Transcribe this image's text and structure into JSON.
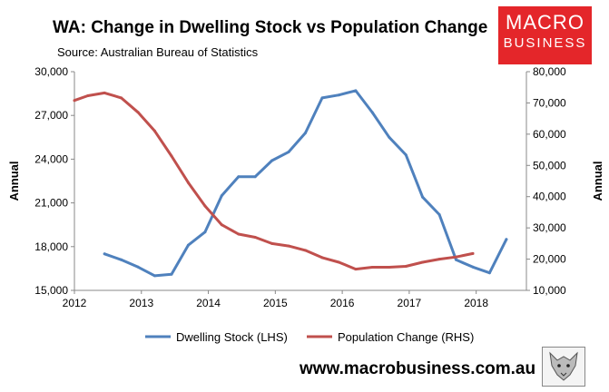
{
  "header": {
    "title": "WA: Change in Dwelling Stock vs Population Change",
    "source": "Source: Australian Bureau of Statistics"
  },
  "logo": {
    "line1": "MACRO",
    "line2": "BUSINESS"
  },
  "footer": {
    "website": "www.macrobusiness.com.au"
  },
  "chart_data": {
    "type": "line",
    "title": "WA: Change in Dwelling Stock vs Population Change",
    "subtitle": "Source: Australian Bureau of Statistics",
    "xlabel": "",
    "ylabel": "Annual",
    "y2label": "Annual",
    "xlim": [
      2012,
      2018.75
    ],
    "ylim": [
      15000,
      30000
    ],
    "y2lim": [
      10000,
      80000
    ],
    "x_ticks": [
      "2012",
      "2013",
      "2014",
      "2015",
      "2016",
      "2017",
      "2018"
    ],
    "y_ticks": [
      "15,000",
      "18,000",
      "21,000",
      "24,000",
      "27,000",
      "30,000"
    ],
    "y2_ticks": [
      "10,000",
      "20,000",
      "30,000",
      "40,000",
      "50,000",
      "60,000",
      "70,000",
      "80,000"
    ],
    "grid": false,
    "legend_position": "bottom",
    "series": [
      {
        "name": "Dwelling Stock (LHS)",
        "axis": "left",
        "color": "#4f81bd",
        "x": [
          2012.45,
          2012.7,
          2012.95,
          2013.2,
          2013.45,
          2013.7,
          2013.95,
          2014.2,
          2014.45,
          2014.7,
          2014.95,
          2015.2,
          2015.45,
          2015.7,
          2015.95,
          2016.2,
          2016.45,
          2016.7,
          2016.95,
          2017.2,
          2017.45,
          2017.7,
          2017.95,
          2018.2,
          2018.45
        ],
        "values": [
          17500,
          17100,
          16600,
          16000,
          16100,
          18100,
          19000,
          21500,
          22800,
          22800,
          23900,
          24500,
          25800,
          28200,
          28400,
          28700,
          27200,
          25500,
          24300,
          21400,
          20200,
          17100,
          16600,
          16200,
          18500
        ]
      },
      {
        "name": "Population Change (RHS)",
        "axis": "right",
        "color": "#c0504d",
        "x": [
          2012.0,
          2012.2,
          2012.45,
          2012.7,
          2012.95,
          2013.2,
          2013.45,
          2013.7,
          2013.95,
          2014.2,
          2014.45,
          2014.7,
          2014.95,
          2015.2,
          2015.45,
          2015.7,
          2015.95,
          2016.2,
          2016.45,
          2016.7,
          2016.95,
          2017.2,
          2017.45,
          2017.7,
          2017.95
        ],
        "values": [
          70800,
          72300,
          73200,
          71600,
          67000,
          61000,
          53000,
          44500,
          37000,
          31000,
          28000,
          27000,
          25000,
          24200,
          22800,
          20500,
          19000,
          16800,
          17400,
          17400,
          17700,
          19000,
          20000,
          20700,
          21800
        ]
      }
    ]
  }
}
